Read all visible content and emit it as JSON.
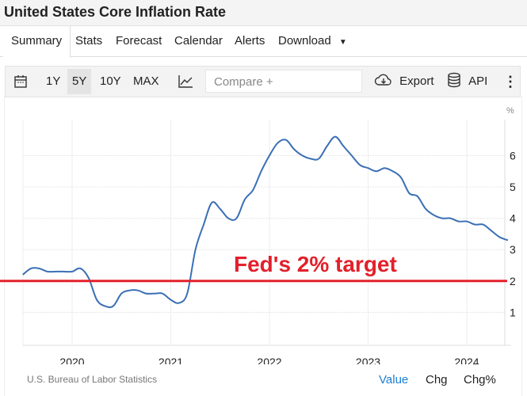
{
  "title": "United States Core Inflation Rate",
  "tabs": [
    "Summary",
    "Stats",
    "Forecast",
    "Calendar",
    "Alerts",
    "Download"
  ],
  "toolbar": {
    "ranges": [
      "1Y",
      "5Y",
      "10Y",
      "MAX"
    ],
    "selected_range": "5Y",
    "compare_placeholder": "Compare +",
    "export_label": "Export",
    "api_label": "API"
  },
  "footer": {
    "source": "U.S. Bureau of Labor Statistics",
    "modes": [
      "Value",
      "Chg",
      "Chg%"
    ],
    "active_mode": "Value"
  },
  "colors": {
    "line": "#3a6fb5",
    "target": "#e3202b",
    "active": "#1a7fd4"
  },
  "chart_data": {
    "type": "line",
    "title": "United States Core Inflation Rate",
    "ylabel": "%",
    "ylim": [
      0,
      7
    ],
    "yticks": [
      "1",
      "2",
      "3",
      "4",
      "5",
      "6"
    ],
    "xticks": [
      "2020",
      "2021",
      "2022",
      "2023",
      "2024"
    ],
    "start_month": "2019-07",
    "values": [
      2.2,
      2.4,
      2.4,
      2.3,
      2.3,
      2.3,
      2.3,
      2.4,
      2.1,
      1.4,
      1.2,
      1.2,
      1.6,
      1.7,
      1.7,
      1.6,
      1.6,
      1.6,
      1.4,
      1.3,
      1.6,
      3.0,
      3.8,
      4.5,
      4.3,
      4.0,
      4.0,
      4.6,
      4.9,
      5.5,
      6.0,
      6.4,
      6.5,
      6.2,
      6.0,
      5.9,
      5.9,
      6.3,
      6.6,
      6.3,
      6.0,
      5.7,
      5.6,
      5.5,
      5.6,
      5.5,
      5.3,
      4.8,
      4.7,
      4.3,
      4.1,
      4.0,
      4.0,
      3.9,
      3.9,
      3.8,
      3.8,
      3.6,
      3.4,
      3.3
    ],
    "reference_line": {
      "value": 2,
      "label": "Fed's 2% target"
    },
    "grid": true
  }
}
